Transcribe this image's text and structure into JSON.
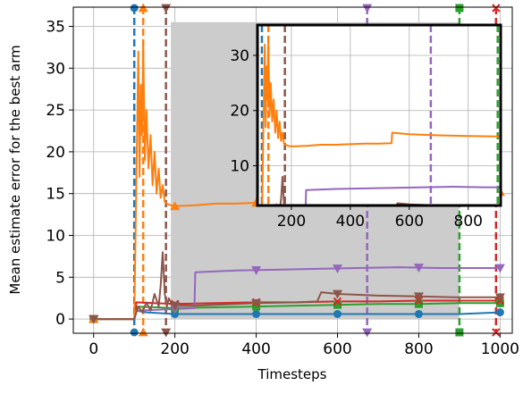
{
  "chart_data": {
    "type": "line",
    "xlabel": "Timesteps",
    "ylabel": "Mean estimate error for the best arm",
    "xlim": [
      -50,
      1030
    ],
    "ylim": [
      -1.7,
      37.3
    ],
    "xticks": [
      0,
      200,
      400,
      600,
      800,
      1000
    ],
    "yticks": [
      0,
      5,
      10,
      15,
      20,
      25,
      30,
      35
    ],
    "grid": true,
    "shaded_region": {
      "x": [
        190,
        900
      ],
      "y": [
        0,
        35.5
      ],
      "color": "#cccccc"
    },
    "vlines": [
      {
        "x": 100,
        "color": "#1f77b4",
        "marker": "circle"
      },
      {
        "x": 122,
        "color": "#ff7f0e",
        "marker": "triangle-up"
      },
      {
        "x": 178,
        "color": "#8c564b",
        "marker": "triangle-down"
      },
      {
        "x": 673,
        "color": "#9467bd",
        "marker": "triangle-down"
      },
      {
        "x": 900,
        "color": "#2ca02c",
        "marker": "square"
      },
      {
        "x": 990,
        "color": "#d62728",
        "marker": "x"
      }
    ],
    "series": [
      {
        "color": "#1f77b4",
        "marker": "circle",
        "x": [
          0,
          100,
          105,
          130,
          200,
          300,
          400,
          500,
          600,
          700,
          800,
          900,
          1000
        ],
        "y": [
          0,
          0,
          1.0,
          0.8,
          0.6,
          0.6,
          0.6,
          0.6,
          0.6,
          0.6,
          0.6,
          0.6,
          0.8
        ]
      },
      {
        "color": "#2ca02c",
        "marker": "square",
        "x": [
          0,
          100,
          105,
          200,
          300,
          400,
          500,
          600,
          700,
          800,
          900,
          1000
        ],
        "y": [
          0,
          0,
          1.5,
          1.3,
          1.4,
          1.5,
          1.6,
          1.7,
          1.8,
          1.8,
          1.9,
          1.9
        ]
      },
      {
        "color": "#d62728",
        "marker": "x",
        "x": [
          0,
          100,
          105,
          200,
          300,
          400,
          500,
          600,
          700,
          800,
          900,
          1000
        ],
        "y": [
          0,
          0,
          2.0,
          1.8,
          1.9,
          2.0,
          2.0,
          2.1,
          2.1,
          2.2,
          2.2,
          2.2
        ]
      },
      {
        "color": "#9467bd",
        "marker": "triangle-down",
        "x": [
          0,
          100,
          105,
          200,
          248,
          250,
          350,
          450,
          550,
          650,
          750,
          850,
          1000
        ],
        "y": [
          0,
          0,
          1.0,
          1.2,
          1.3,
          5.6,
          5.8,
          5.9,
          6.0,
          6.1,
          6.2,
          6.1,
          6.1
        ]
      },
      {
        "color": "#ff7f0e",
        "marker": "triangle-up",
        "x": [
          0,
          100,
          110,
          113,
          116,
          119,
          122,
          126,
          130,
          135,
          140,
          145,
          150,
          155,
          160,
          165,
          170,
          175,
          180,
          190,
          200,
          250,
          300,
          350,
          400,
          450,
          500,
          540,
          542,
          600,
          700,
          800,
          900,
          1000
        ],
        "y": [
          0,
          0,
          32,
          17,
          28,
          22,
          33,
          19,
          25,
          18,
          22,
          16,
          20,
          15,
          18,
          14.5,
          16,
          14,
          13.8,
          13.6,
          13.5,
          13.6,
          13.8,
          13.8,
          13.9,
          14.0,
          14.0,
          14.1,
          16.0,
          15.7,
          15.5,
          15.4,
          15.3,
          15.2
        ]
      },
      {
        "color": "#8c564b",
        "marker": "triangle-down",
        "x": [
          0,
          100,
          110,
          120,
          130,
          140,
          150,
          160,
          165,
          170,
          175,
          180,
          185,
          190,
          200,
          250,
          300,
          400,
          500,
          550,
          560,
          600,
          700,
          800,
          900,
          1000
        ],
        "y": [
          0,
          0,
          1.5,
          0.8,
          2.0,
          1.0,
          3.0,
          1.5,
          4.0,
          8.0,
          3.0,
          1.5,
          2.5,
          2.0,
          1.6,
          1.6,
          1.7,
          1.9,
          2.0,
          2.1,
          3.2,
          3.0,
          2.8,
          2.7,
          2.6,
          2.6
        ]
      }
    ],
    "inset": {
      "xlim": [
        85,
        910
      ],
      "ylim": [
        2.8,
        35.5
      ],
      "xticks": [
        200,
        400,
        600,
        800
      ],
      "yticks": [
        10,
        20,
        30
      ],
      "grid": true
    }
  }
}
